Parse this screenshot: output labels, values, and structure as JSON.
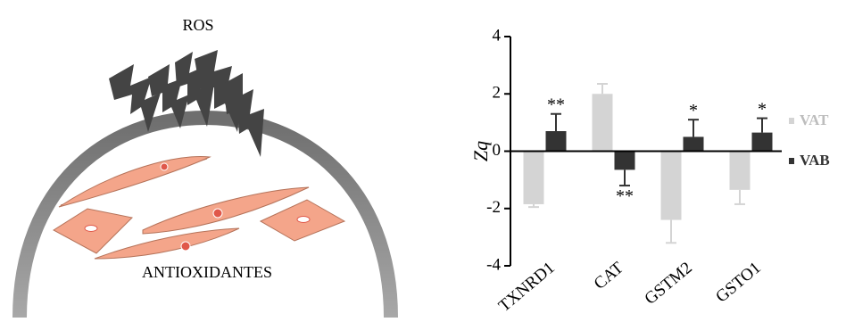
{
  "illustration": {
    "top_label": "ROS",
    "bottom_label": "ANTIOXIDANTES"
  },
  "chart_data": {
    "type": "bar",
    "y_label": "Zq",
    "categories": [
      "TXNRD1",
      "CAT",
      "GSTM2",
      "GSTO1"
    ],
    "series": [
      {
        "name": "VAT",
        "color": "#d4d4d4",
        "values": [
          -1.85,
          2.0,
          -2.4,
          -1.35
        ],
        "errors": [
          0.1,
          0.35,
          0.8,
          0.5
        ]
      },
      {
        "name": "VAB",
        "color": "#333333",
        "values": [
          0.7,
          -0.65,
          0.5,
          0.65
        ],
        "errors": [
          0.6,
          0.55,
          0.6,
          0.5
        ],
        "annotations": [
          "**",
          "**",
          "*",
          "*"
        ]
      }
    ],
    "ylim": [
      -4,
      4
    ],
    "yticks": [
      -4,
      -2,
      0,
      2,
      4
    ],
    "grid": false
  }
}
